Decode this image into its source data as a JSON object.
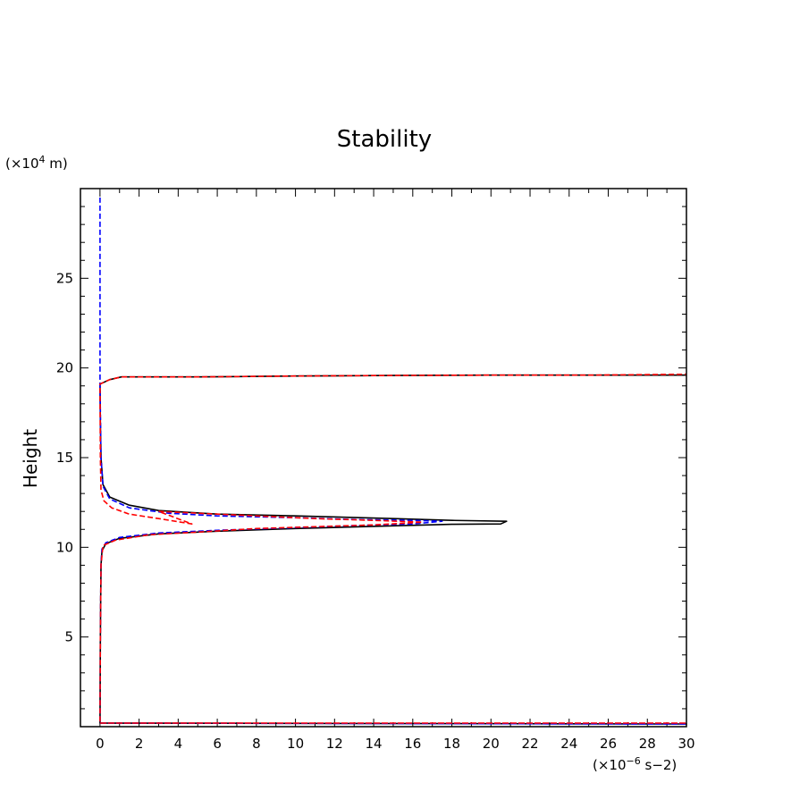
{
  "chart_data": {
    "type": "line",
    "title": "Stability",
    "ylabel": "Height",
    "xlabel": "",
    "x_unit": "(×10",
    "x_unit_exp": "−6",
    "x_unit_tail": " s−2)",
    "y_unit": "(×10",
    "y_unit_exp": "4",
    "y_unit_tail": " m)",
    "xlim": [
      -1,
      30
    ],
    "ylim": [
      0,
      30
    ],
    "x_ticks": [
      0,
      2,
      4,
      6,
      8,
      10,
      12,
      14,
      16,
      18,
      20,
      22,
      24,
      26,
      28,
      30
    ],
    "y_ticks": [
      5,
      10,
      15,
      20,
      25
    ],
    "grid": false,
    "series": [
      {
        "color": "#000000",
        "dash": "solid",
        "points": [
          [
            0,
            0.2
          ],
          [
            30,
            0.15
          ],
          [
            0,
            0.2
          ],
          [
            0.02,
            5
          ],
          [
            0.05,
            9
          ],
          [
            0.1,
            9.8
          ],
          [
            0.3,
            10.2
          ],
          [
            1,
            10.5
          ],
          [
            3,
            10.75
          ],
          [
            6,
            10.9
          ],
          [
            10,
            11.05
          ],
          [
            15,
            11.2
          ],
          [
            18,
            11.28
          ],
          [
            20.5,
            11.3
          ],
          [
            20.8,
            11.45
          ],
          [
            18,
            11.5
          ],
          [
            15,
            11.6
          ],
          [
            10,
            11.75
          ],
          [
            6,
            11.85
          ],
          [
            3,
            12.05
          ],
          [
            1.5,
            12.35
          ],
          [
            0.5,
            12.8
          ],
          [
            0.15,
            13.5
          ],
          [
            0.05,
            15
          ],
          [
            0.02,
            17
          ],
          [
            0,
            19.1
          ],
          [
            0.5,
            19.35
          ],
          [
            1.1,
            19.5
          ],
          [
            5,
            19.5
          ],
          [
            10,
            19.55
          ],
          [
            15,
            19.58
          ],
          [
            20,
            19.6
          ],
          [
            25,
            19.6
          ],
          [
            30,
            19.6
          ]
        ]
      },
      {
        "color": "#0000ff",
        "dash": "dashed",
        "points": [
          [
            0,
            0.2
          ],
          [
            30,
            0.15
          ],
          [
            0,
            0.2
          ],
          [
            0.02,
            5
          ],
          [
            0.05,
            9
          ],
          [
            0.1,
            9.9
          ],
          [
            0.3,
            10.25
          ],
          [
            1,
            10.55
          ],
          [
            3,
            10.8
          ],
          [
            6,
            10.95
          ],
          [
            10,
            11.1
          ],
          [
            14,
            11.25
          ],
          [
            16,
            11.3
          ],
          [
            17.5,
            11.45
          ],
          [
            16,
            11.5
          ],
          [
            13,
            11.55
          ],
          [
            10,
            11.65
          ],
          [
            6,
            11.75
          ],
          [
            3.5,
            11.9
          ],
          [
            1.5,
            12.2
          ],
          [
            0.5,
            12.7
          ],
          [
            0.15,
            13.4
          ],
          [
            0.05,
            15
          ],
          [
            0,
            19.1
          ],
          [
            0,
            29.5
          ]
        ]
      },
      {
        "color": "#ff0000",
        "dash": "dashed",
        "points": [
          [
            0,
            0.2
          ],
          [
            30,
            0.2
          ],
          [
            0,
            0.2
          ],
          [
            0.02,
            5
          ],
          [
            0.05,
            9
          ],
          [
            0.15,
            10.1
          ],
          [
            0.8,
            10.4
          ],
          [
            2.5,
            10.7
          ],
          [
            5,
            10.85
          ],
          [
            8,
            11.05
          ],
          [
            11,
            11.15
          ],
          [
            14,
            11.25
          ],
          [
            16.5,
            11.4
          ],
          [
            14,
            11.5
          ],
          [
            11,
            11.6
          ],
          [
            8,
            11.75
          ],
          [
            5,
            11.9
          ],
          [
            3,
            12.0
          ],
          [
            4.7,
            11.3
          ],
          [
            3,
            11.6
          ],
          [
            1.5,
            11.85
          ],
          [
            0.6,
            12.2
          ],
          [
            0.2,
            12.6
          ],
          [
            0.05,
            13.2
          ],
          [
            0.02,
            15
          ],
          [
            0,
            19.1
          ],
          [
            0.5,
            19.35
          ],
          [
            1.1,
            19.5
          ],
          [
            5,
            19.5
          ],
          [
            10,
            19.55
          ],
          [
            15,
            19.58
          ],
          [
            20,
            19.6
          ],
          [
            25,
            19.6
          ],
          [
            30,
            19.65
          ]
        ]
      }
    ]
  }
}
